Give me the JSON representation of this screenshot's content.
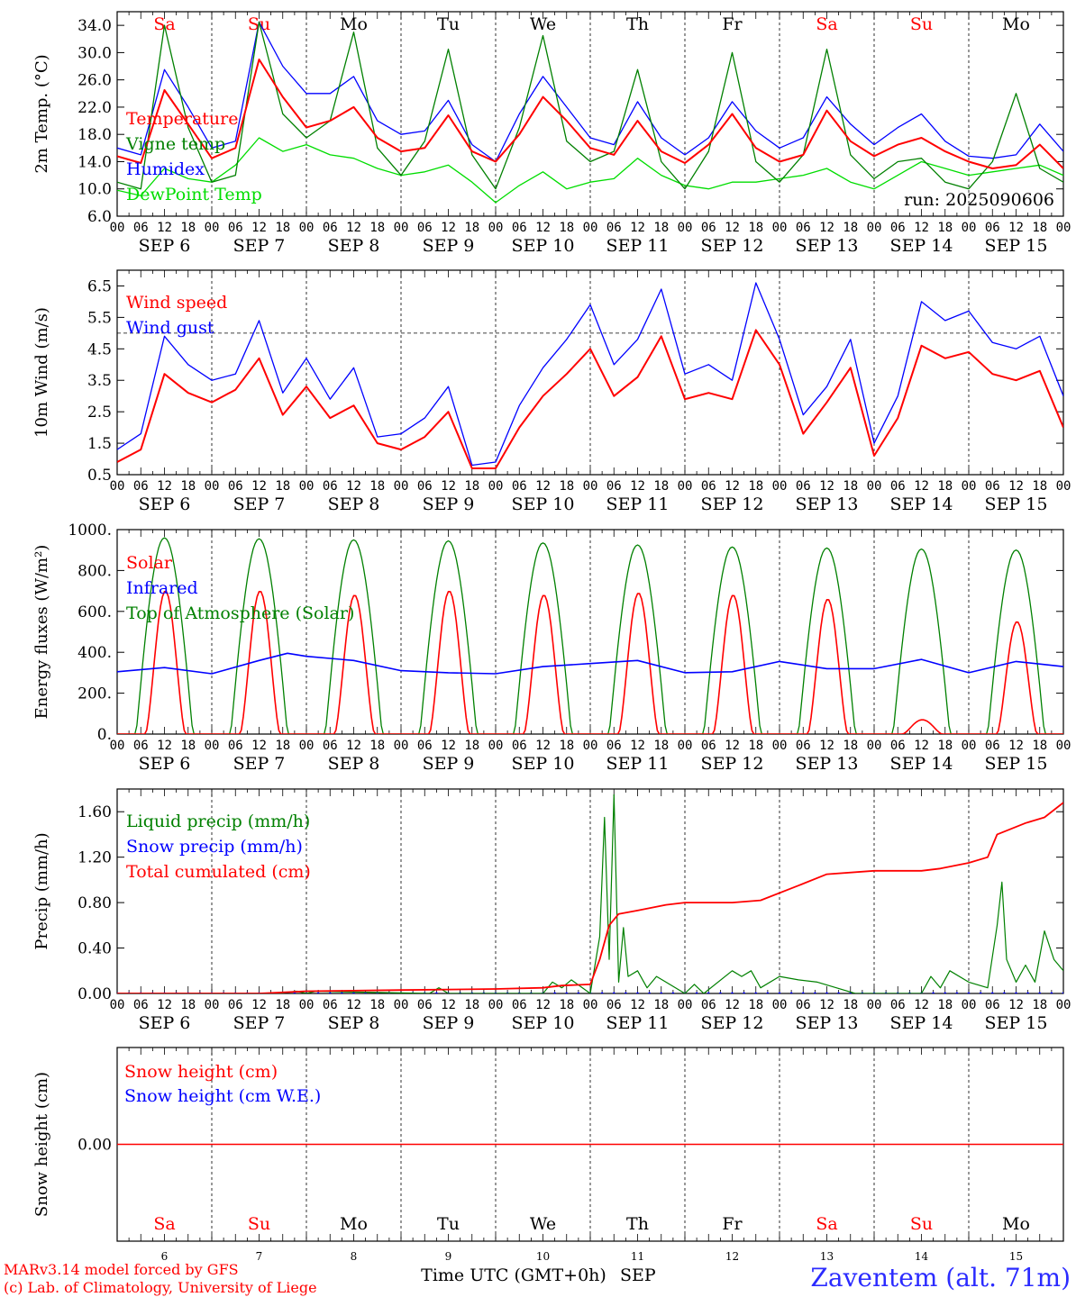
{
  "footer": {
    "credit_line1": "MARv3.14 model forced by GFS",
    "credit_line2": "(c) Lab. of Climatology, University of Liege",
    "xaxis_label": "Time UTC (GMT+0h)",
    "month": "SEP",
    "station": "Zaventem (alt. 71m)"
  },
  "colors": {
    "red": "#ff0000",
    "blue": "#0000ff",
    "green": "#008000",
    "lightgreen": "#00dd00",
    "axis": "#000000"
  },
  "days": {
    "dates": [
      "SEP 6",
      "SEP 7",
      "SEP 8",
      "SEP 9",
      "SEP 10",
      "SEP 11",
      "SEP 12",
      "SEP 13",
      "SEP 14",
      "SEP 15"
    ],
    "weekday_labels": [
      "Sa",
      "Su",
      "Mo",
      "Tu",
      "We",
      "Th",
      "Fr",
      "Sa",
      "Su",
      "Mo"
    ],
    "weekend_flags": [
      true,
      true,
      false,
      false,
      false,
      false,
      false,
      true,
      true,
      false
    ],
    "hour_ticks": [
      "00",
      "06",
      "12",
      "18"
    ],
    "end_tick": "00",
    "day_numbers": [
      "6",
      "7",
      "8",
      "9",
      "10",
      "11",
      "12",
      "13",
      "14",
      "15"
    ]
  },
  "chart_data": [
    {
      "id": "temperature",
      "type": "line",
      "ylabel": "2m Temp. (°C)",
      "ylim": [
        6.0,
        36.0
      ],
      "yticks": [
        "6.0",
        "10.0",
        "14.0",
        "18.0",
        "22.0",
        "26.0",
        "30.0",
        "34.0"
      ],
      "yticks_v": [
        6,
        10,
        14,
        18,
        22,
        26,
        30,
        34
      ],
      "annotation": "run: 2025090606",
      "x_days": [
        0,
        0.25,
        0.5,
        0.75,
        1,
        1.25,
        1.5,
        1.75,
        2,
        2.25,
        2.5,
        2.75,
        3,
        3.25,
        3.5,
        3.75,
        4,
        4.25,
        4.5,
        4.75,
        5,
        5.25,
        5.5,
        5.75,
        6,
        6.25,
        6.5,
        6.75,
        7,
        7.25,
        7.5,
        7.75,
        8,
        8.25,
        8.5,
        8.75,
        9,
        9.25,
        9.5,
        9.75,
        10
      ],
      "series": [
        {
          "name": "Temperature",
          "color": "red",
          "values": [
            14.8,
            13.8,
            24.5,
            19.5,
            14.5,
            16.0,
            29.0,
            23.5,
            19.0,
            20.0,
            22.0,
            17.5,
            15.5,
            16.0,
            20.8,
            15.5,
            14.0,
            18.0,
            23.5,
            20.0,
            16.0,
            15.0,
            20.0,
            15.5,
            13.8,
            16.5,
            21.0,
            16.0,
            14.0,
            15.0,
            21.5,
            17.0,
            14.8,
            16.5,
            17.5,
            15.5,
            14.0,
            13.0,
            13.5,
            16.5,
            13.0
          ]
        },
        {
          "name": "Vigne temp",
          "color": "green",
          "values": [
            11.0,
            10.0,
            34.0,
            19.0,
            11.0,
            12.0,
            34.5,
            21.0,
            17.5,
            20.0,
            33.0,
            16.0,
            12.0,
            17.0,
            30.5,
            15.0,
            10.0,
            19.0,
            32.5,
            17.0,
            14.0,
            15.5,
            27.5,
            14.0,
            10.0,
            15.5,
            30.0,
            14.0,
            11.0,
            15.0,
            30.5,
            15.0,
            11.5,
            14.0,
            14.5,
            11.0,
            10.0,
            14.0,
            24.0,
            13.0,
            11.0
          ]
        },
        {
          "name": "Humidex",
          "color": "blue",
          "values": [
            16.0,
            15.0,
            27.5,
            22.0,
            16.0,
            17.0,
            34.5,
            28.0,
            24.0,
            24.0,
            26.5,
            20.0,
            18.0,
            18.5,
            23.0,
            16.5,
            14.0,
            21.0,
            26.5,
            22.0,
            17.5,
            16.5,
            22.8,
            17.5,
            15.0,
            17.5,
            22.8,
            18.5,
            16.0,
            17.5,
            23.5,
            19.5,
            16.5,
            19.0,
            21.0,
            17.0,
            14.8,
            14.5,
            15.0,
            19.5,
            15.5
          ]
        },
        {
          "name": "DewPoint Temp",
          "color": "lightgreen",
          "values": [
            9.8,
            9.0,
            13.0,
            11.5,
            11.0,
            13.5,
            17.5,
            15.5,
            16.5,
            15.0,
            14.5,
            13.0,
            12.0,
            12.5,
            13.5,
            11.0,
            8.0,
            10.5,
            12.5,
            10.0,
            11.0,
            11.5,
            14.5,
            12.0,
            10.5,
            10.0,
            11.0,
            11.0,
            11.5,
            12.0,
            13.0,
            11.0,
            10.0,
            12.0,
            14.0,
            13.0,
            12.0,
            12.5,
            13.0,
            13.5,
            12.0
          ]
        }
      ]
    },
    {
      "id": "wind",
      "type": "line",
      "ylabel": "10m Wind (m/s)",
      "ylim": [
        0.5,
        7.0
      ],
      "yticks": [
        "0.5",
        "1.5",
        "2.5",
        "3.5",
        "4.5",
        "5.5",
        "6.5"
      ],
      "yticks_v": [
        0.5,
        1.5,
        2.5,
        3.5,
        4.5,
        5.5,
        6.5
      ],
      "ref_line": 5.0,
      "x_days": [
        0,
        0.25,
        0.5,
        0.75,
        1,
        1.25,
        1.5,
        1.75,
        2,
        2.25,
        2.5,
        2.75,
        3,
        3.25,
        3.5,
        3.75,
        4,
        4.25,
        4.5,
        4.75,
        5,
        5.25,
        5.5,
        5.75,
        6,
        6.25,
        6.5,
        6.75,
        7,
        7.25,
        7.5,
        7.75,
        8,
        8.25,
        8.5,
        8.75,
        9,
        9.25,
        9.5,
        9.75,
        10
      ],
      "series": [
        {
          "name": "Wind speed",
          "color": "red",
          "values": [
            0.9,
            1.3,
            3.7,
            3.1,
            2.8,
            3.2,
            4.2,
            2.4,
            3.3,
            2.3,
            2.7,
            1.5,
            1.3,
            1.7,
            2.5,
            0.7,
            0.7,
            2.0,
            3.0,
            3.7,
            4.5,
            3.0,
            3.6,
            4.9,
            2.9,
            3.1,
            2.9,
            5.1,
            4.0,
            1.8,
            2.8,
            3.9,
            1.1,
            2.3,
            4.6,
            4.2,
            4.4,
            3.7,
            3.5,
            3.8,
            2.0
          ]
        },
        {
          "name": "Wind gust",
          "color": "blue",
          "values": [
            1.3,
            1.8,
            4.9,
            4.0,
            3.5,
            3.7,
            5.4,
            3.1,
            4.2,
            2.9,
            3.9,
            1.7,
            1.8,
            2.3,
            3.3,
            0.8,
            0.9,
            2.7,
            3.9,
            4.8,
            5.9,
            4.0,
            4.8,
            6.4,
            3.7,
            4.0,
            3.5,
            6.6,
            4.8,
            2.4,
            3.3,
            4.8,
            1.5,
            3.0,
            6.0,
            5.4,
            5.7,
            4.7,
            4.5,
            4.9,
            3.0
          ]
        }
      ]
    },
    {
      "id": "energy",
      "type": "line",
      "ylabel": "Energy fluxes (W/m²)",
      "ylim": [
        0,
        1000
      ],
      "yticks": [
        "0.",
        "200.",
        "400.",
        "600.",
        "800.",
        "1000."
      ],
      "yticks_v": [
        0,
        200,
        400,
        600,
        800,
        1000
      ],
      "solar_peaks": [
        700,
        700,
        680,
        700,
        680,
        690,
        680,
        660,
        70,
        550
      ],
      "toa_peaks": [
        960,
        955,
        950,
        945,
        935,
        925,
        915,
        910,
        905,
        900
      ],
      "infrared": {
        "x_days": [
          0,
          0.5,
          1,
          1.5,
          1.8,
          2,
          2.5,
          3,
          3.5,
          4,
          4.5,
          5,
          5.5,
          6,
          6.5,
          7,
          7.5,
          8,
          8.5,
          9,
          9.5,
          10
        ],
        "values": [
          305,
          325,
          295,
          360,
          395,
          380,
          360,
          310,
          300,
          295,
          330,
          345,
          360,
          300,
          305,
          355,
          320,
          320,
          365,
          300,
          355,
          330
        ]
      },
      "series": [
        {
          "name": "Solar",
          "color": "red"
        },
        {
          "name": "Infrared",
          "color": "blue"
        },
        {
          "name": "Top of Atmosphere (Solar)",
          "color": "green"
        }
      ]
    },
    {
      "id": "precip",
      "type": "line",
      "ylabel": "Precip (mm/h)",
      "ylim": [
        0,
        1.8
      ],
      "yticks": [
        "0.00",
        "0.40",
        "0.80",
        "1.20",
        "1.60"
      ],
      "yticks_v": [
        0,
        0.4,
        0.8,
        1.2,
        1.6
      ],
      "series": [
        {
          "name": "Liquid precip (mm/h)",
          "color": "green",
          "x_days": [
            0,
            1.7,
            1.9,
            2.0,
            2.1,
            3.3,
            3.4,
            3.5,
            4.5,
            4.6,
            4.7,
            4.8,
            5.0,
            5.1,
            5.15,
            5.2,
            5.25,
            5.3,
            5.35,
            5.4,
            5.5,
            5.6,
            5.7,
            5.8,
            6.0,
            6.1,
            6.2,
            6.5,
            6.6,
            6.7,
            6.8,
            7.0,
            7.2,
            7.4,
            7.6,
            7.8,
            8.0,
            8.5,
            8.6,
            8.7,
            8.8,
            9.0,
            9.2,
            9.3,
            9.35,
            9.4,
            9.5,
            9.6,
            9.7,
            9.8,
            9.9,
            10
          ],
          "values": [
            0,
            0,
            0.02,
            0,
            0.02,
            0,
            0.05,
            0,
            0,
            0.1,
            0.05,
            0.12,
            0,
            0.5,
            1.55,
            0.3,
            1.75,
            0.1,
            0.58,
            0.15,
            0.2,
            0.05,
            0.15,
            0.1,
            0,
            0.08,
            0,
            0.2,
            0.15,
            0.2,
            0.05,
            0.15,
            0.12,
            0.1,
            0.05,
            0,
            0,
            0,
            0.15,
            0.05,
            0.2,
            0.1,
            0.05,
            0.6,
            0.98,
            0.3,
            0.1,
            0.25,
            0.1,
            0.55,
            0.3,
            0.2
          ]
        },
        {
          "name": "Snow precip (mm/h)",
          "color": "blue",
          "x_days": [
            0,
            10
          ],
          "values": [
            0,
            0
          ]
        },
        {
          "name": "Total cumulated (cm)",
          "color": "red",
          "x_days": [
            0,
            1.5,
            2,
            3,
            4,
            4.5,
            4.7,
            5.0,
            5.1,
            5.2,
            5.3,
            5.5,
            5.8,
            6.0,
            6.5,
            6.8,
            7.2,
            7.5,
            8.0,
            8.5,
            8.7,
            9.0,
            9.2,
            9.3,
            9.6,
            9.8,
            10
          ],
          "values": [
            0,
            0,
            0.02,
            0.03,
            0.04,
            0.05,
            0.07,
            0.08,
            0.3,
            0.6,
            0.7,
            0.73,
            0.78,
            0.8,
            0.8,
            0.82,
            0.95,
            1.05,
            1.08,
            1.08,
            1.1,
            1.15,
            1.2,
            1.4,
            1.5,
            1.55,
            1.68
          ]
        }
      ]
    },
    {
      "id": "snow",
      "type": "line",
      "ylabel": "Snow height (cm)",
      "ylim": [
        -0.25,
        0.25
      ],
      "yticks": [
        "0.00"
      ],
      "yticks_v": [
        0
      ],
      "series": [
        {
          "name": "Snow height (cm)",
          "color": "red",
          "values": [
            0,
            0
          ]
        },
        {
          "name": "Snow height (cm W.E.)",
          "color": "blue",
          "values": [
            0,
            0
          ]
        }
      ]
    }
  ]
}
